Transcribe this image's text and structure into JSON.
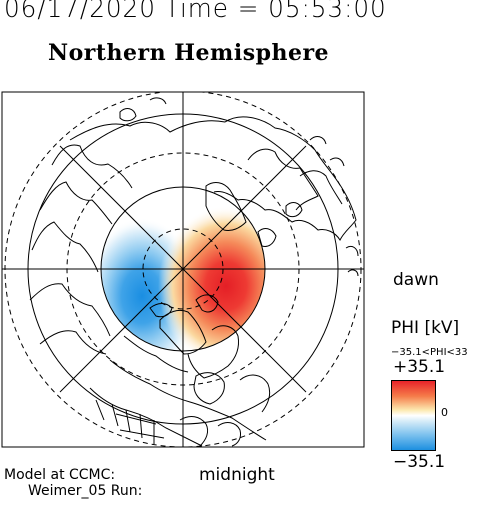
{
  "header": {
    "date_time": "06/17/2020 Time = 05:53:00",
    "title": "Northern Hemisphere"
  },
  "map": {
    "labels": {
      "dawn": "dawn",
      "midnight": "midnight"
    },
    "pattern": {
      "positive_cell": "dawn side, red",
      "negative_cell": "dusk side, blue"
    }
  },
  "colorbar": {
    "title": "PHI [kV]",
    "range_text": "−35.1<PHI<33",
    "max_label": "+35.1",
    "zero_label": "0",
    "min_label": "−35.1",
    "colors": {
      "max": "#e8232a",
      "mid": "#ffffff",
      "min": "#1d8fe0"
    }
  },
  "footer": {
    "model_label": "Model at CCMC:",
    "run_label": "Weimer_05 Run:"
  }
}
